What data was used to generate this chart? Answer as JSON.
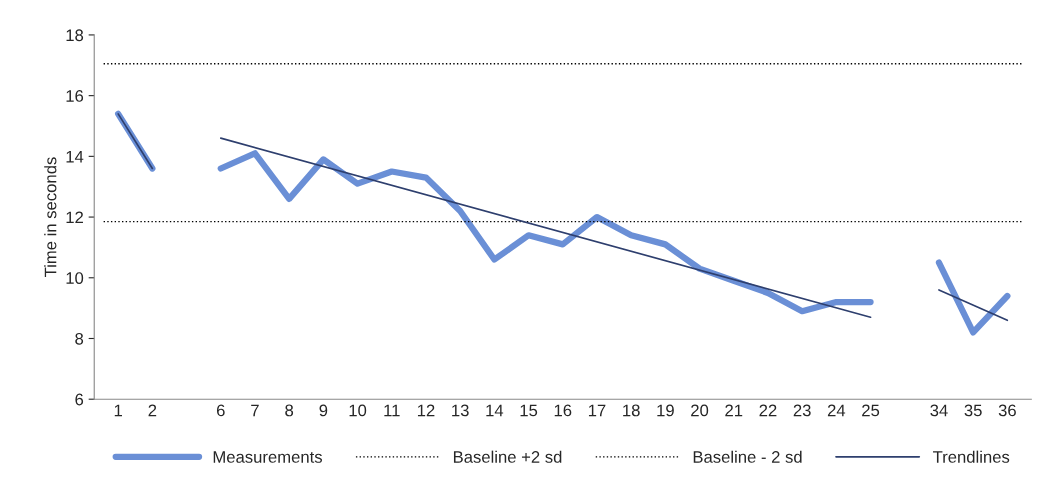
{
  "chart_data": {
    "type": "line",
    "ylabel": "Time in seconds",
    "categories": [
      "1",
      "2",
      null,
      "6",
      "7",
      "8",
      "9",
      "10",
      "11",
      "12",
      "13",
      "14",
      "15",
      "16",
      "17",
      "18",
      "19",
      "20",
      "21",
      "22",
      "23",
      "24",
      "25",
      null,
      "34",
      "35",
      "36"
    ],
    "series": [
      {
        "name": "Measurements",
        "color": "#6a8fd6",
        "values": [
          15.4,
          13.6,
          null,
          13.6,
          14.1,
          12.6,
          13.9,
          13.1,
          13.5,
          13.3,
          12.2,
          10.6,
          11.4,
          11.1,
          12.0,
          11.4,
          11.1,
          10.3,
          9.9,
          9.5,
          8.9,
          9.2,
          9.2,
          null,
          10.5,
          8.2,
          9.4
        ]
      },
      {
        "name": "Trendlines",
        "color": "#2e3f6e",
        "type": "line",
        "x": [
          "1",
          "2"
        ],
        "values": [
          15.4,
          13.6
        ]
      },
      {
        "color": "#2e3f6e",
        "type": "line",
        "x": [
          "6",
          "25"
        ],
        "values": [
          14.6,
          8.7
        ]
      },
      {
        "color": "#2e3f6e",
        "type": "line",
        "x": [
          "34",
          "36"
        ],
        "values": [
          9.6,
          8.6
        ]
      }
    ],
    "ref_lines": [
      {
        "axis": "y",
        "value": 17.05,
        "label": "Baseline +2 sd",
        "color": "#000000",
        "line_style": "dotted"
      },
      {
        "axis": "y",
        "value": 11.85,
        "label": "Baseline - 2 sd",
        "color": "#000000",
        "line_style": "dotted"
      }
    ],
    "ylim": [
      6,
      18
    ],
    "yticks": [
      6,
      8,
      10,
      12,
      14,
      16,
      18
    ],
    "grid": false,
    "legend": "bottom",
    "marker": "none",
    "line_style": "solid"
  }
}
